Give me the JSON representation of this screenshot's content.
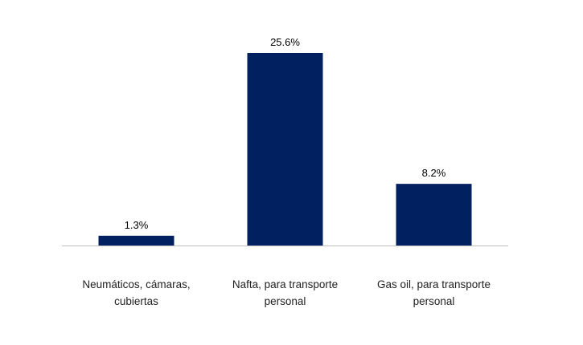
{
  "chart_data": {
    "type": "bar",
    "title": "",
    "xlabel": "",
    "ylabel": "",
    "categories": [
      [
        "Neumáticos, cámaras,",
        "cubiertas"
      ],
      [
        "Nafta, para transporte",
        "personal"
      ],
      [
        "Gas oil, para transporte",
        "personal"
      ]
    ],
    "values": [
      1.3,
      25.6,
      8.2
    ],
    "value_labels": [
      "1.3%",
      "25.6%",
      "8.2%"
    ],
    "ylim": [
      0,
      27
    ],
    "grid": false,
    "bar_color": "#002060",
    "axis_color": "#bfbfbf"
  }
}
